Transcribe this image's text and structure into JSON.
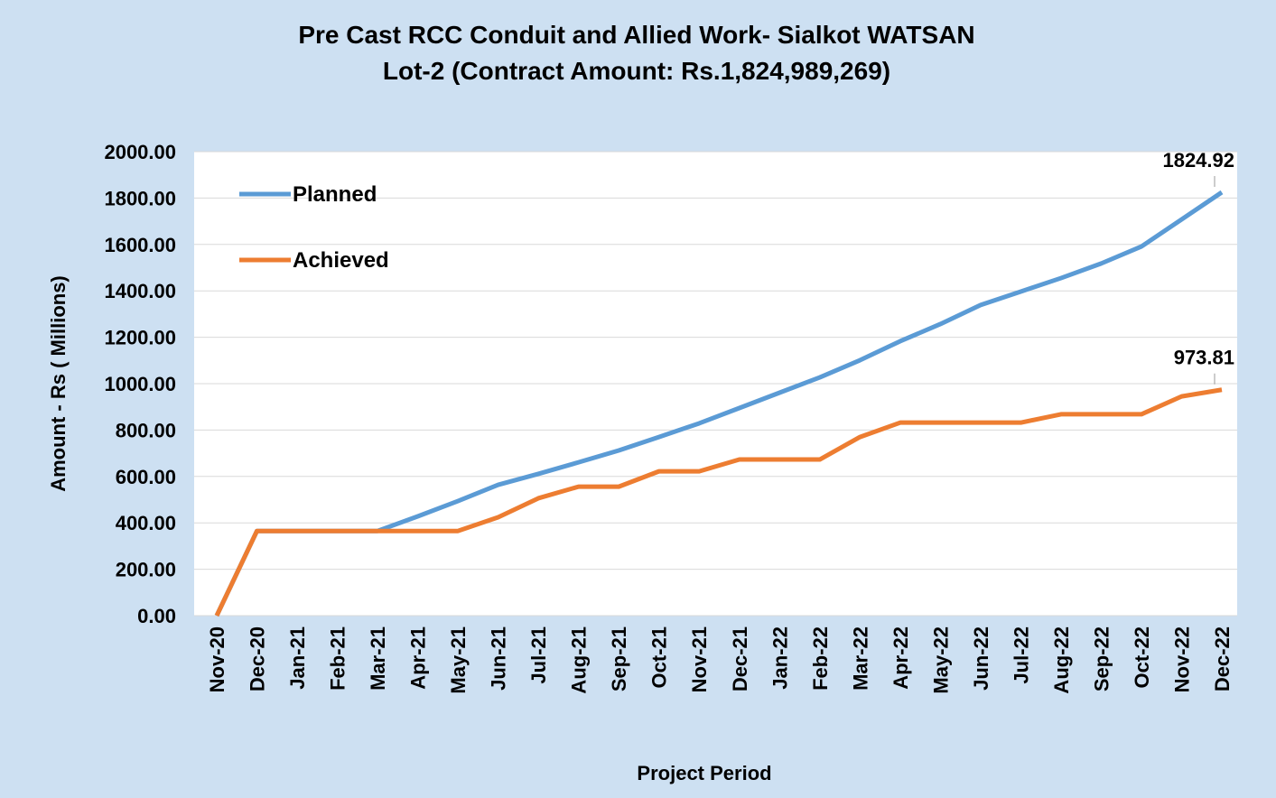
{
  "chart_data": {
    "type": "line",
    "title": "Pre Cast RCC Conduit and Allied Work- Sialkot WATSAN",
    "subtitle": "Lot-2 (Contract Amount: Rs.1,824,989,269)",
    "x_label": "Project Period",
    "y_label": "Amount - Rs  ( Millions)",
    "categories": [
      "Nov-20",
      "Dec-20",
      "Jan-21",
      "Feb-21",
      "Mar-21",
      "Apr-21",
      "May-21",
      "Jun-21",
      "Jul-21",
      "Aug-21",
      "Sep-21",
      "Oct-21",
      "Nov-21",
      "Dec-21",
      "Jan-22",
      "Feb-22",
      "Mar-22",
      "Apr-22",
      "May-22",
      "Jun-22",
      "Jul-22",
      "Aug-22",
      "Sep-22",
      "Oct-22",
      "Nov-22",
      "Dec-22"
    ],
    "series": [
      {
        "name": "Planned",
        "color": "#5b9bd5",
        "values": [
          0,
          365,
          365,
          365,
          365,
          428,
          494,
          564,
          611,
          661,
          712,
          770,
          829,
          895,
          961,
          1027,
          1101,
          1183,
          1257,
          1339,
          1397,
          1455,
          1518,
          1591,
          1708,
          1824.92
        ]
      },
      {
        "name": "Achieved",
        "color": "#ed7d31",
        "values": [
          0,
          365,
          365,
          365,
          365,
          365,
          365,
          424,
          506,
          556,
          556,
          622,
          622,
          673,
          673,
          673,
          770,
          832,
          832,
          832,
          832,
          868,
          868,
          868,
          945,
          973.81
        ]
      }
    ],
    "ylim": [
      0,
      2000
    ],
    "yticks": [
      {
        "value": 0,
        "label": "0.00"
      },
      {
        "value": 200,
        "label": "200.00"
      },
      {
        "value": 400,
        "label": "400.00"
      },
      {
        "value": 600,
        "label": "600.00"
      },
      {
        "value": 800,
        "label": "800.00"
      },
      {
        "value": 1000,
        "label": "1000.00"
      },
      {
        "value": 1200,
        "label": "1200.00"
      },
      {
        "value": 1400,
        "label": "1400.00"
      },
      {
        "value": 1600,
        "label": "1600.00"
      },
      {
        "value": 1800,
        "label": "1800.00"
      },
      {
        "value": 2000,
        "label": "2000.00"
      }
    ],
    "grid": true,
    "legend": "upper-left"
  }
}
